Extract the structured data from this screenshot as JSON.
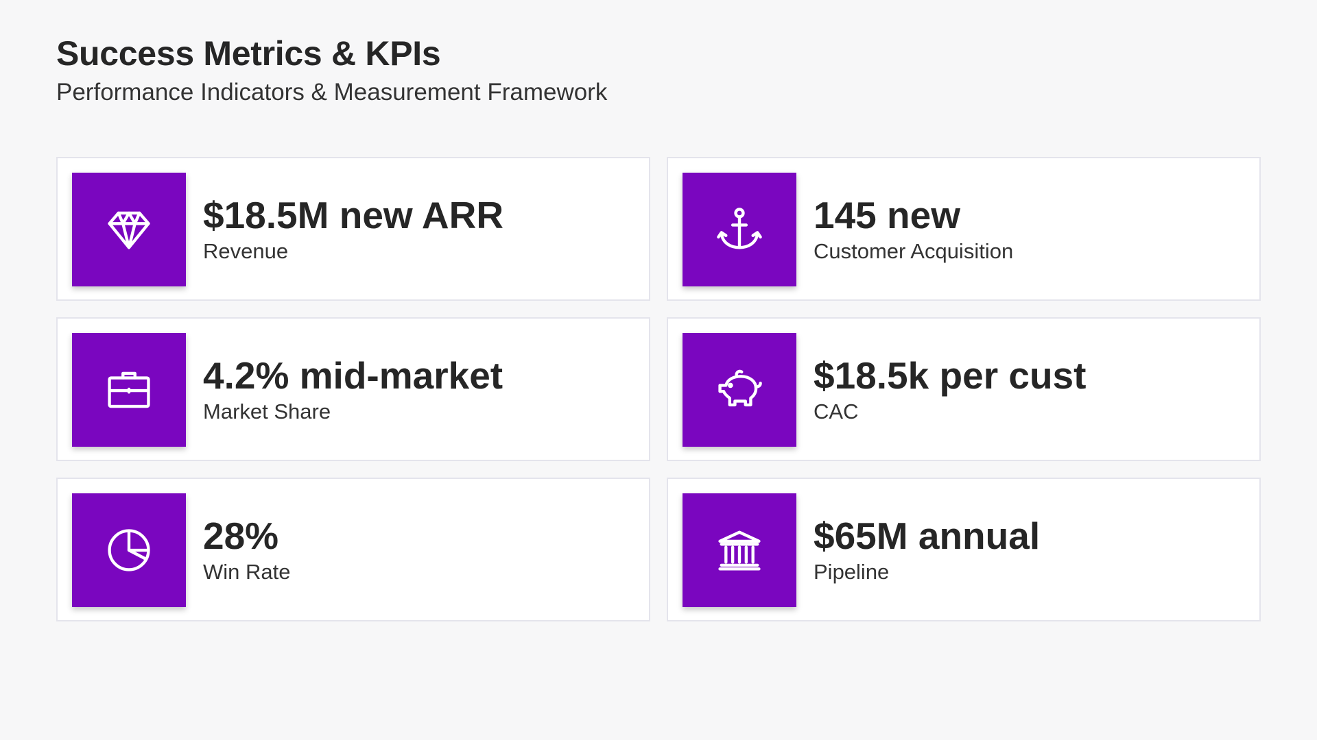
{
  "header": {
    "title": "Success Metrics & KPIs",
    "subtitle": "Performance Indicators & Measurement Framework"
  },
  "theme": {
    "accent": "#7a06bf",
    "background": "#f7f7f8",
    "card": "#ffffff"
  },
  "metrics": [
    {
      "value": "$18.5M new ARR",
      "label": "Revenue",
      "icon": "diamond-icon"
    },
    {
      "value": "145 new",
      "label": "Customer Acquisition",
      "icon": "anchor-icon"
    },
    {
      "value": "4.2% mid-market",
      "label": "Market Share",
      "icon": "briefcase-icon"
    },
    {
      "value": "$18.5k per cust",
      "label": "CAC",
      "icon": "piggy-bank-icon"
    },
    {
      "value": "28%",
      "label": "Win Rate",
      "icon": "pie-chart-icon"
    },
    {
      "value": "$65M annual",
      "label": "Pipeline",
      "icon": "bank-icon"
    }
  ]
}
